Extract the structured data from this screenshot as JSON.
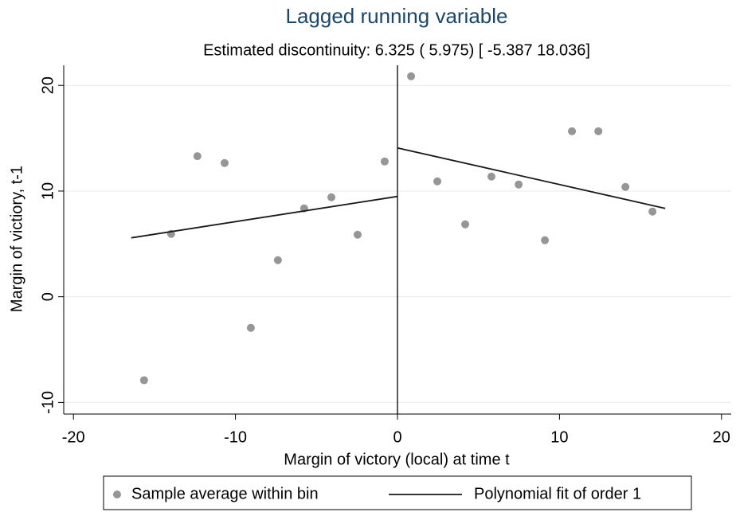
{
  "chart_data": {
    "type": "scatter",
    "title": "Lagged running variable",
    "subtitle": "Estimated discontinuity: 6.325 ( 5.975) [ -5.387 18.036]",
    "x_label": "Margin of victory (local) at time t",
    "y_label": "Margin of victiory, t-1",
    "xlim": [
      -20.6,
      20.6
    ],
    "xticks": [
      -20,
      -10,
      0,
      10,
      20
    ],
    "ylim": [
      -11.1,
      21.9
    ],
    "yticks": [
      -10,
      0,
      10,
      20
    ],
    "grid": true,
    "cutoff": 0,
    "legend": "bottom",
    "series": [
      {
        "name": "Sample average within bin",
        "type": "scatter",
        "color": "#969696",
        "x": [
          -15.64,
          -13.97,
          -12.35,
          -10.67,
          -9.05,
          -7.38,
          -5.76,
          -4.08,
          -2.46,
          -0.79,
          0.84,
          2.46,
          4.18,
          5.8,
          7.48,
          9.1,
          10.77,
          12.4,
          14.07,
          15.74
        ],
        "values": [
          -7.9,
          5.95,
          13.3,
          12.65,
          -2.94,
          3.46,
          8.36,
          9.41,
          5.87,
          12.8,
          20.86,
          10.92,
          6.85,
          11.37,
          10.62,
          5.35,
          15.66,
          15.66,
          10.39,
          8.06
        ]
      },
      {
        "name": "Polynomial fit of order 1",
        "type": "line",
        "color": "#1a1a1a",
        "x": [
          -16.43,
          0,
          null,
          0,
          16.53
        ],
        "values": [
          5.57,
          9.49,
          null,
          14.08,
          8.36
        ]
      }
    ]
  }
}
